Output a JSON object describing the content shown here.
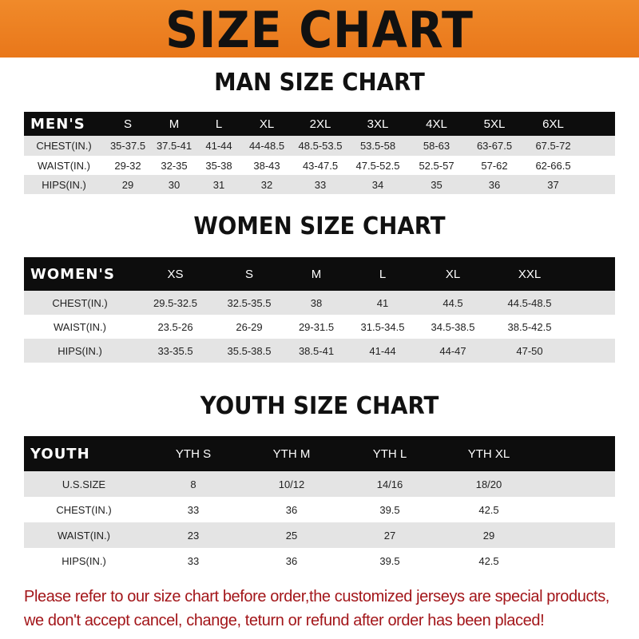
{
  "title": "SIZE CHART",
  "colors": {
    "banner": "#ee8226",
    "header_row": "#0d0d0d",
    "stripe": "#e4e4e4",
    "note": "#a3161a"
  },
  "men": {
    "heading": "MAN SIZE CHART",
    "header": [
      "MEN'S",
      "S",
      "M",
      "L",
      "XL",
      "2XL",
      "3XL",
      "4XL",
      "5XL",
      "6XL"
    ],
    "rows": [
      [
        "CHEST(IN.)",
        "35-37.5",
        "37.5-41",
        "41-44",
        "44-48.5",
        "48.5-53.5",
        "53.5-58",
        "58-63",
        "63-67.5",
        "67.5-72"
      ],
      [
        "WAIST(IN.)",
        "29-32",
        "32-35",
        "35-38",
        "38-43",
        "43-47.5",
        "47.5-52.5",
        "52.5-57",
        "57-62",
        "62-66.5"
      ],
      [
        "HIPS(IN.)",
        "29",
        "30",
        "31",
        "32",
        "33",
        "34",
        "35",
        "36",
        "37"
      ]
    ]
  },
  "women": {
    "heading": "WOMEN SIZE CHART",
    "header": [
      "WOMEN'S",
      "XS",
      "S",
      "M",
      "L",
      "XL",
      "XXL"
    ],
    "rows": [
      [
        "CHEST(IN.)",
        "29.5-32.5",
        "32.5-35.5",
        "38",
        "41",
        "44.5",
        "44.5-48.5"
      ],
      [
        "WAIST(IN.)",
        "23.5-26",
        "26-29",
        "29-31.5",
        "31.5-34.5",
        "34.5-38.5",
        "38.5-42.5"
      ],
      [
        "HIPS(IN.)",
        "33-35.5",
        "35.5-38.5",
        "38.5-41",
        "41-44",
        "44-47",
        "47-50"
      ]
    ]
  },
  "youth": {
    "heading": "YOUTH SIZE CHART",
    "header": [
      "YOUTH",
      "YTH S",
      "YTH M",
      "YTH L",
      "YTH XL"
    ],
    "rows": [
      [
        "U.S.SIZE",
        "8",
        "10/12",
        "14/16",
        "18/20"
      ],
      [
        "CHEST(IN.)",
        "33",
        "36",
        "39.5",
        "42.5"
      ],
      [
        "WAIST(IN.)",
        "23",
        "25",
        "27",
        "29"
      ],
      [
        "HIPS(IN.)",
        "33",
        "36",
        "39.5",
        "42.5"
      ]
    ]
  },
  "note": {
    "line1": "Please refer to our size chart before order,the customized jerseys are special products,",
    "line2": "we don't accept cancel, change, teturn or refund after order has been placed!"
  }
}
